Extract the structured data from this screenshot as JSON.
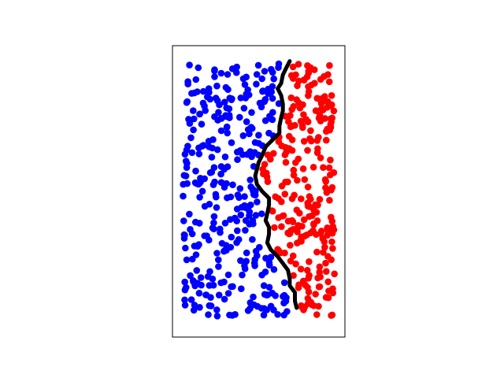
{
  "chart_data": {
    "type": "scatter",
    "title": "",
    "xlabel": "",
    "ylabel": "",
    "xlim": [
      0,
      1
    ],
    "ylim": [
      0,
      1.7
    ],
    "grid": false,
    "ticks": false,
    "colors": {
      "left": "#0000ff",
      "right": "#ff0000",
      "boundary": "#000000",
      "frame": "#000000"
    },
    "boundary": {
      "x": [
        0.68,
        0.66,
        0.64,
        0.63,
        0.61,
        0.63,
        0.64,
        0.64,
        0.63,
        0.62,
        0.62,
        0.58,
        0.54,
        0.52,
        0.5,
        0.49,
        0.48,
        0.49,
        0.52,
        0.56,
        0.56,
        0.55,
        0.54,
        0.56,
        0.56,
        0.55,
        0.57,
        0.61,
        0.64,
        0.67,
        0.68,
        0.68,
        0.71,
        0.71,
        0.72
      ],
      "y": [
        1.61,
        1.57,
        1.53,
        1.48,
        1.45,
        1.41,
        1.36,
        1.32,
        1.28,
        1.23,
        1.19,
        1.15,
        1.11,
        1.06,
        1.02,
        0.98,
        0.94,
        0.89,
        0.85,
        0.81,
        0.77,
        0.72,
        0.68,
        0.64,
        0.6,
        0.55,
        0.51,
        0.47,
        0.43,
        0.39,
        0.34,
        0.3,
        0.26,
        0.21,
        0.17
      ]
    },
    "series": [
      {
        "color": "#0000ff",
        "count": 340
      },
      {
        "color": "#ff0000",
        "count": 250
      }
    ]
  }
}
